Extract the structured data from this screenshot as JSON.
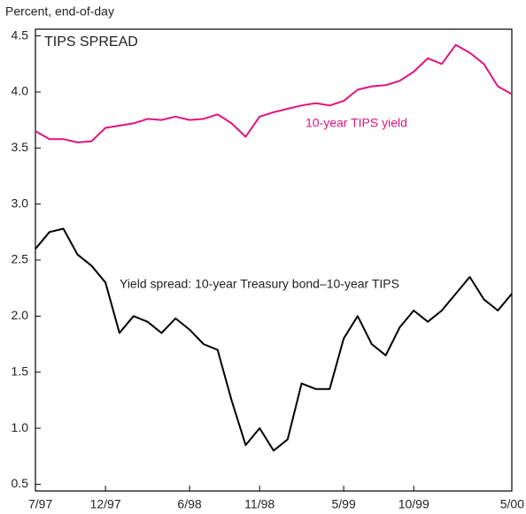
{
  "chart_data": {
    "type": "line",
    "title": "TIPS SPREAD",
    "y_axis_label": "Percent, end-of-day",
    "x": [
      "1997-07",
      "1997-08",
      "1997-09",
      "1997-10",
      "1997-11",
      "1997-12",
      "1998-01",
      "1998-02",
      "1998-03",
      "1998-04",
      "1998-05",
      "1998-06",
      "1998-07",
      "1998-08",
      "1998-09",
      "1998-10",
      "1998-11",
      "1998-12",
      "1999-01",
      "1999-02",
      "1999-03",
      "1999-04",
      "1999-05",
      "1999-06",
      "1999-07",
      "1999-08",
      "1999-09",
      "1999-10",
      "1999-11",
      "1999-12",
      "2000-01",
      "2000-02",
      "2000-03",
      "2000-04",
      "2000-05"
    ],
    "series": [
      {
        "name": "10-year TIPS yield",
        "color": "#e0147f",
        "values": [
          3.65,
          3.58,
          3.58,
          3.55,
          3.56,
          3.68,
          3.7,
          3.72,
          3.76,
          3.75,
          3.78,
          3.75,
          3.76,
          3.8,
          3.72,
          3.6,
          3.78,
          3.82,
          3.85,
          3.88,
          3.9,
          3.88,
          3.92,
          4.02,
          4.05,
          4.06,
          4.1,
          4.18,
          4.3,
          4.25,
          4.42,
          4.35,
          4.25,
          4.05,
          3.98
        ]
      },
      {
        "name": "Yield spread: 10-year Treasury bond–10-year TIPS",
        "color": "#000000",
        "values": [
          2.6,
          2.75,
          2.78,
          2.55,
          2.45,
          2.3,
          1.85,
          2.0,
          1.95,
          1.85,
          1.98,
          1.88,
          1.75,
          1.7,
          1.25,
          0.85,
          1.0,
          0.8,
          0.9,
          1.4,
          1.35,
          1.35,
          1.8,
          2.0,
          1.75,
          1.65,
          1.9,
          2.05,
          1.95,
          2.05,
          2.2,
          2.35,
          2.15,
          2.05,
          2.2
        ]
      }
    ],
    "ylim": [
      0.44,
      4.56
    ],
    "yticks": [
      0.5,
      {
        "value": 1,
        "label": "1.0"
      },
      1.5,
      {
        "value": 2,
        "label": "2.0"
      },
      2.5,
      {
        "value": 3,
        "label": "3.0"
      },
      3.5,
      {
        "value": 4,
        "label": "4.0"
      },
      4.5
    ],
    "xticks": [
      {
        "value": "1997-07",
        "label": "7/97"
      },
      {
        "value": "1997-12",
        "label": "12/97"
      },
      {
        "value": "1998-06",
        "label": "6/98"
      },
      {
        "value": "1998-11",
        "label": "11/98"
      },
      {
        "value": "1999-05",
        "label": "5/99"
      },
      {
        "value": "1999-10",
        "label": "10/99"
      },
      {
        "value": "2000-05",
        "label": "5/00"
      }
    ],
    "grid": false
  }
}
